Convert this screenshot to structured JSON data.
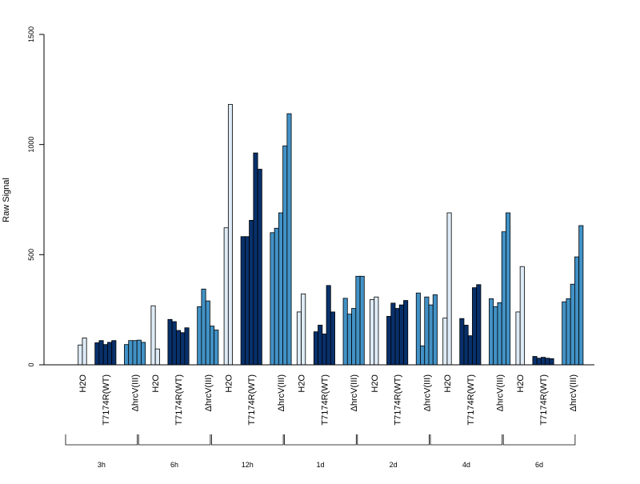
{
  "chart_data": {
    "type": "bar",
    "title": "",
    "xlabel": "",
    "ylabel": "Raw Signal",
    "ylim": [
      0,
      1500
    ],
    "y_ticks": [
      0,
      500,
      1000,
      1500
    ],
    "grid": false,
    "legend": "none",
    "time_points": [
      "3h",
      "6h",
      "12h",
      "1d",
      "2d",
      "4d",
      "6d"
    ],
    "group_labels": [
      "H2O",
      "T7174R(WT)",
      "ΔhrcV(III)"
    ],
    "series": [
      {
        "treatment": "H2O",
        "color": "#deebf7",
        "values": [
          [
            90,
            122
          ],
          [
            268,
            72
          ],
          [
            622,
            1182
          ],
          [
            240,
            322
          ],
          [
            296,
            308
          ],
          [
            212,
            690
          ],
          [
            240,
            446
          ]
        ]
      },
      {
        "treatment": "T7174R(WT)",
        "color": "#08306b",
        "values": [
          [
            100,
            110,
            92,
            102,
            110
          ],
          [
            206,
            196,
            156,
            146,
            168
          ],
          [
            582,
            582,
            656,
            962,
            888
          ],
          [
            150,
            180,
            140,
            360,
            240
          ],
          [
            220,
            280,
            256,
            272,
            292
          ],
          [
            210,
            180,
            132,
            350,
            364
          ],
          [
            38,
            30,
            34,
            30,
            28
          ]
        ]
      },
      {
        "treatment": "ΔhrcV(III)",
        "color": "#4292c6",
        "values": [
          [
            92,
            110,
            110,
            112,
            102
          ],
          [
            264,
            344,
            290,
            176,
            158
          ],
          [
            600,
            620,
            690,
            994,
            1140
          ],
          [
            302,
            230,
            256,
            402,
            402
          ],
          [
            326,
            86,
            308,
            272,
            318
          ],
          [
            300,
            264,
            282,
            604,
            690
          ],
          [
            286,
            300,
            366,
            490,
            632
          ]
        ]
      }
    ]
  }
}
